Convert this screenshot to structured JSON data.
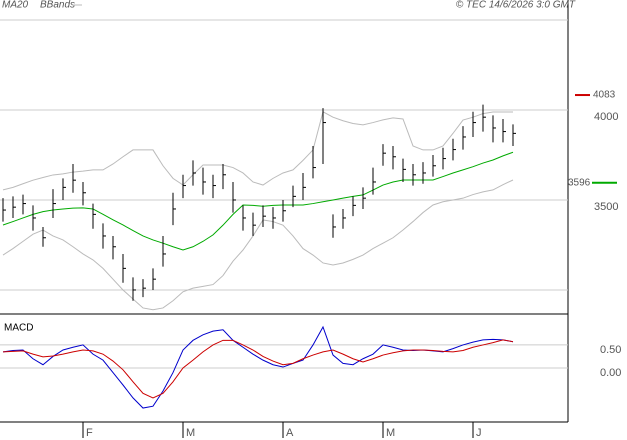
{
  "chart_data": [
    {
      "type": "ohlc",
      "source": "© TEC 14/6/2026 3:0 GMT",
      "categories": [
        null,
        null,
        null,
        null,
        null,
        null,
        null,
        null,
        "F",
        null,
        null,
        null,
        null,
        null,
        null,
        null,
        null,
        null,
        "M",
        null,
        null,
        null,
        null,
        null,
        null,
        null,
        null,
        null,
        "A",
        null,
        null,
        null,
        null,
        null,
        null,
        null,
        null,
        null,
        "M",
        null,
        null,
        null,
        null,
        null,
        null,
        null,
        null,
        "J",
        null,
        null,
        null,
        null
      ],
      "high": [
        3510,
        3520,
        3530,
        3470,
        3350,
        3560,
        3620,
        3700,
        3600,
        3480,
        3370,
        3300,
        3200,
        3070,
        3060,
        3120,
        3300,
        3540,
        3640,
        3720,
        3680,
        3640,
        3700,
        3600,
        3470,
        3430,
        3470,
        3460,
        3500,
        3580,
        3650,
        3800,
        4010,
        3420,
        3450,
        3520,
        3570,
        3680,
        3810,
        3800,
        3730,
        3700,
        3710,
        3750,
        3790,
        3840,
        3910,
        3990,
        4030,
        3970,
        3950,
        3920
      ],
      "low": [
        3380,
        3400,
        3420,
        3330,
        3240,
        3400,
        3500,
        3540,
        3470,
        3340,
        3230,
        3170,
        3040,
        2940,
        2960,
        3000,
        3130,
        3360,
        3510,
        3580,
        3530,
        3510,
        3560,
        3430,
        3330,
        3300,
        3350,
        3340,
        3380,
        3460,
        3500,
        3620,
        3700,
        3290,
        3340,
        3410,
        3450,
        3530,
        3690,
        3670,
        3600,
        3580,
        3590,
        3630,
        3670,
        3720,
        3780,
        3850,
        3880,
        3820,
        3820,
        3800
      ],
      "close": [
        3444,
        3460,
        3480,
        3400,
        3290,
        3480,
        3570,
        3610,
        3540,
        3420,
        3300,
        3240,
        3120,
        3000,
        3010,
        3060,
        3200,
        3450,
        3580,
        3650,
        3600,
        3580,
        3640,
        3500,
        3400,
        3360,
        3410,
        3400,
        3440,
        3520,
        3570,
        3680,
        3930,
        3350,
        3400,
        3470,
        3510,
        3600,
        3760,
        3740,
        3670,
        3640,
        3650,
        3690,
        3730,
        3780,
        3850,
        3930,
        3960,
        3900,
        3880,
        3870
      ],
      "color": "#000000",
      "series": [
        {
          "name": "MA20",
          "color": "#00aa00",
          "values": [
            3361,
            3380,
            3400,
            3420,
            3435,
            3444,
            3450,
            3455,
            3456,
            3450,
            3420,
            3390,
            3361,
            3330,
            3300,
            3278,
            3260,
            3240,
            3222,
            3240,
            3270,
            3306,
            3360,
            3420,
            3472,
            3470,
            3465,
            3470,
            3472,
            3472,
            3472,
            3480,
            3490,
            3500,
            3510,
            3520,
            3528,
            3555,
            3583,
            3600,
            3611,
            3611,
            3611,
            3611,
            3630,
            3650,
            3667,
            3685,
            3705,
            3722,
            3745,
            3765
          ]
        }
      ],
      "bands": {
        "name": "BBands",
        "color": "#bbbbbb",
        "upper": [
          3556,
          3570,
          3590,
          3610,
          3625,
          3639,
          3645,
          3655,
          3660,
          3667,
          3667,
          3700,
          3740,
          3778,
          3778,
          3778,
          3690,
          3620,
          3583,
          3640,
          3694,
          3694,
          3694,
          3680,
          3650,
          3600,
          3583,
          3620,
          3650,
          3667,
          3720,
          3778,
          3990,
          3960,
          3940,
          3925,
          3917,
          3930,
          3945,
          3956,
          3950,
          3800,
          3778,
          3778,
          3800,
          3870,
          3944,
          3960,
          3980,
          3989,
          3989,
          3989
        ],
        "lower": [
          3194,
          3230,
          3270,
          3310,
          3333,
          3300,
          3278,
          3240,
          3200,
          3167,
          3120,
          3060,
          3000,
          2950,
          2900,
          2890,
          2900,
          2940,
          2990,
          3010,
          3020,
          3030,
          3080,
          3160,
          3222,
          3300,
          3389,
          3380,
          3360,
          3300,
          3230,
          3194,
          3150,
          3139,
          3150,
          3170,
          3194,
          3230,
          3260,
          3290,
          3333,
          3380,
          3430,
          3472,
          3490,
          3500,
          3510,
          3530,
          3545,
          3556,
          3585,
          3611
        ]
      },
      "levels": [
        {
          "value": 4083,
          "color": "#cc0000"
        },
        {
          "value": 3596,
          "color": "#00aa00"
        }
      ],
      "ylim": [
        2872,
        4611
      ],
      "yticks": [
        3500,
        4000
      ],
      "ygrid": [
        3000,
        3500,
        4000,
        4500
      ]
    },
    {
      "type": "line",
      "title": "MACD",
      "series": [
        {
          "color": "#0000cc",
          "values": [
            0.35,
            0.38,
            0.39,
            0.2,
            0.07,
            0.25,
            0.39,
            0.45,
            0.5,
            0.3,
            0.17,
            -0.1,
            -0.37,
            -0.65,
            -0.87,
            -0.83,
            -0.5,
            -0.1,
            0.39,
            0.6,
            0.72,
            0.8,
            0.83,
            0.6,
            0.45,
            0.3,
            0.17,
            0.07,
            0.02,
            0.1,
            0.17,
            0.5,
            0.89,
            0.28,
            0.1,
            0.07,
            0.2,
            0.3,
            0.5,
            0.45,
            0.39,
            0.38,
            0.39,
            0.37,
            0.35,
            0.42,
            0.5,
            0.56,
            0.61,
            0.62,
            0.61,
            0.57
          ]
        },
        {
          "color": "#cc0000",
          "values": [
            0.35,
            0.36,
            0.37,
            0.3,
            0.24,
            0.26,
            0.3,
            0.35,
            0.39,
            0.37,
            0.3,
            0.15,
            -0.04,
            -0.3,
            -0.55,
            -0.65,
            -0.55,
            -0.3,
            0.0,
            0.17,
            0.35,
            0.5,
            0.6,
            0.6,
            0.5,
            0.39,
            0.25,
            0.15,
            0.07,
            0.1,
            0.2,
            0.28,
            0.35,
            0.39,
            0.3,
            0.2,
            0.13,
            0.2,
            0.28,
            0.33,
            0.37,
            0.39,
            0.39,
            0.38,
            0.36,
            0.35,
            0.38,
            0.45,
            0.5,
            0.55,
            0.61,
            0.57
          ]
        }
      ],
      "ylim": [
        -1.13,
        1.15
      ],
      "yticks": [
        {
          "value": 0.5,
          "label": "0.50"
        },
        {
          "value": 0,
          "label": "0.00"
        }
      ],
      "grid": true
    }
  ]
}
